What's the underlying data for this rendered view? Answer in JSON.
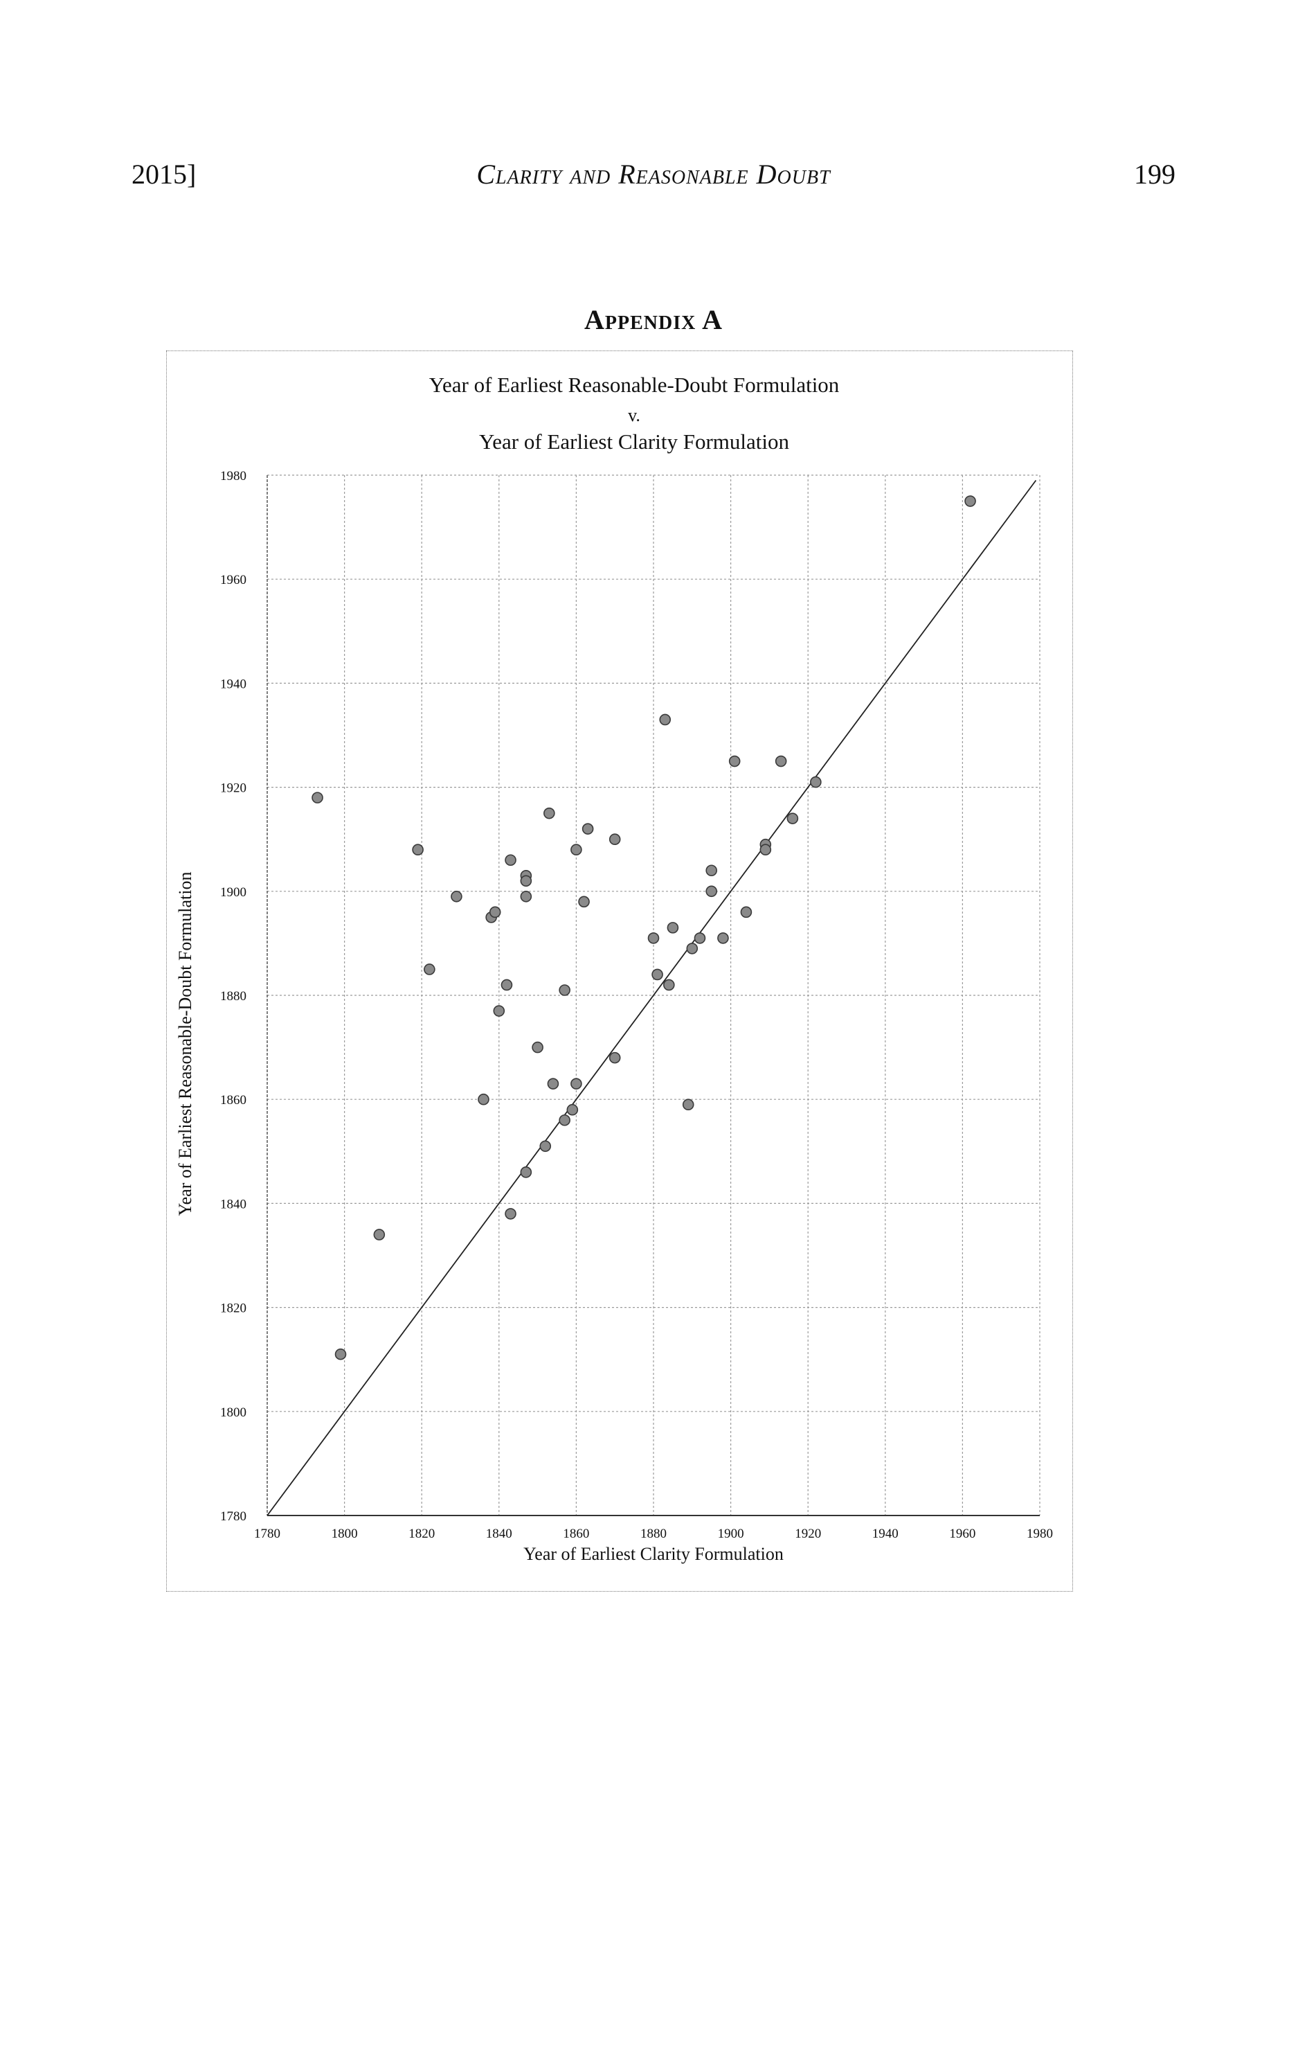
{
  "running_head": {
    "left": "2015]",
    "center": "Clarity and Reasonable Doubt",
    "right": "199"
  },
  "appendix_heading": "Appendix A",
  "chart_data": {
    "type": "scatter",
    "title_lines": [
      "Year of Earliest Reasonable-Doubt Formulation",
      "v.",
      "Year of Earliest Clarity Formulation"
    ],
    "xlabel": "Year of Earliest Clarity Formulation",
    "ylabel": "Year of Earliest Reasonable-Doubt Formulation",
    "xlim": [
      1780,
      1980
    ],
    "ylim": [
      1780,
      1980
    ],
    "xticks": [
      1780,
      1800,
      1820,
      1840,
      1860,
      1880,
      1900,
      1920,
      1940,
      1960,
      1980
    ],
    "yticks": [
      1780,
      1800,
      1820,
      1840,
      1860,
      1880,
      1900,
      1920,
      1940,
      1960,
      1980
    ],
    "grid": true,
    "reference_line": "y = x",
    "marker_color": "#8a8a8a",
    "points": [
      {
        "x": 1793,
        "y": 1918
      },
      {
        "x": 1799,
        "y": 1811
      },
      {
        "x": 1809,
        "y": 1834
      },
      {
        "x": 1819,
        "y": 1908
      },
      {
        "x": 1822,
        "y": 1885
      },
      {
        "x": 1829,
        "y": 1899
      },
      {
        "x": 1836,
        "y": 1860
      },
      {
        "x": 1838,
        "y": 1895
      },
      {
        "x": 1839,
        "y": 1896
      },
      {
        "x": 1840,
        "y": 1877
      },
      {
        "x": 1842,
        "y": 1882
      },
      {
        "x": 1843,
        "y": 1906
      },
      {
        "x": 1843,
        "y": 1838
      },
      {
        "x": 1847,
        "y": 1903
      },
      {
        "x": 1847,
        "y": 1902
      },
      {
        "x": 1847,
        "y": 1899
      },
      {
        "x": 1847,
        "y": 1846
      },
      {
        "x": 1850,
        "y": 1870
      },
      {
        "x": 1852,
        "y": 1851
      },
      {
        "x": 1853,
        "y": 1915
      },
      {
        "x": 1854,
        "y": 1863
      },
      {
        "x": 1857,
        "y": 1881
      },
      {
        "x": 1857,
        "y": 1856
      },
      {
        "x": 1859,
        "y": 1858
      },
      {
        "x": 1860,
        "y": 1908
      },
      {
        "x": 1860,
        "y": 1863
      },
      {
        "x": 1862,
        "y": 1898
      },
      {
        "x": 1863,
        "y": 1912
      },
      {
        "x": 1870,
        "y": 1910
      },
      {
        "x": 1870,
        "y": 1868
      },
      {
        "x": 1880,
        "y": 1891
      },
      {
        "x": 1881,
        "y": 1884
      },
      {
        "x": 1883,
        "y": 1933
      },
      {
        "x": 1884,
        "y": 1882
      },
      {
        "x": 1885,
        "y": 1893
      },
      {
        "x": 1889,
        "y": 1859
      },
      {
        "x": 1890,
        "y": 1889
      },
      {
        "x": 1892,
        "y": 1891
      },
      {
        "x": 1895,
        "y": 1904
      },
      {
        "x": 1895,
        "y": 1900
      },
      {
        "x": 1898,
        "y": 1891
      },
      {
        "x": 1901,
        "y": 1925
      },
      {
        "x": 1904,
        "y": 1896
      },
      {
        "x": 1909,
        "y": 1909
      },
      {
        "x": 1909,
        "y": 1908
      },
      {
        "x": 1913,
        "y": 1925
      },
      {
        "x": 1916,
        "y": 1914
      },
      {
        "x": 1922,
        "y": 1921
      },
      {
        "x": 1962,
        "y": 1975
      }
    ]
  }
}
